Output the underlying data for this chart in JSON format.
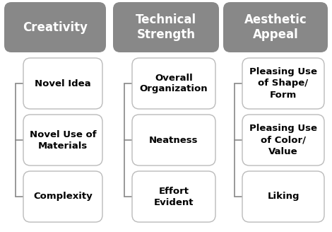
{
  "background_color": "#ffffff",
  "columns": [
    {
      "header": "Creativity",
      "items": [
        "Novel Idea",
        "Novel Use of\nMaterials",
        "Complexity"
      ]
    },
    {
      "header": "Technical\nStrength",
      "items": [
        "Overall\nOrganization",
        "Neatness",
        "Effort\nEvident"
      ]
    },
    {
      "header": "Aesthetic\nAppeal",
      "items": [
        "Pleasing Use\nof Shape/\nForm",
        "Pleasing Use\nof Color/\nValue",
        "Liking"
      ]
    }
  ],
  "header_bg_color": "#888888",
  "header_text_color": "#ffffff",
  "item_bg_color": "#ffffff",
  "item_text_color": "#000000",
  "item_border_color": "#bbbbbb",
  "connector_color": "#888888",
  "header_fontsize": 12,
  "item_fontsize": 9.5,
  "fig_width": 4.7,
  "fig_height": 3.28,
  "dpi": 100
}
